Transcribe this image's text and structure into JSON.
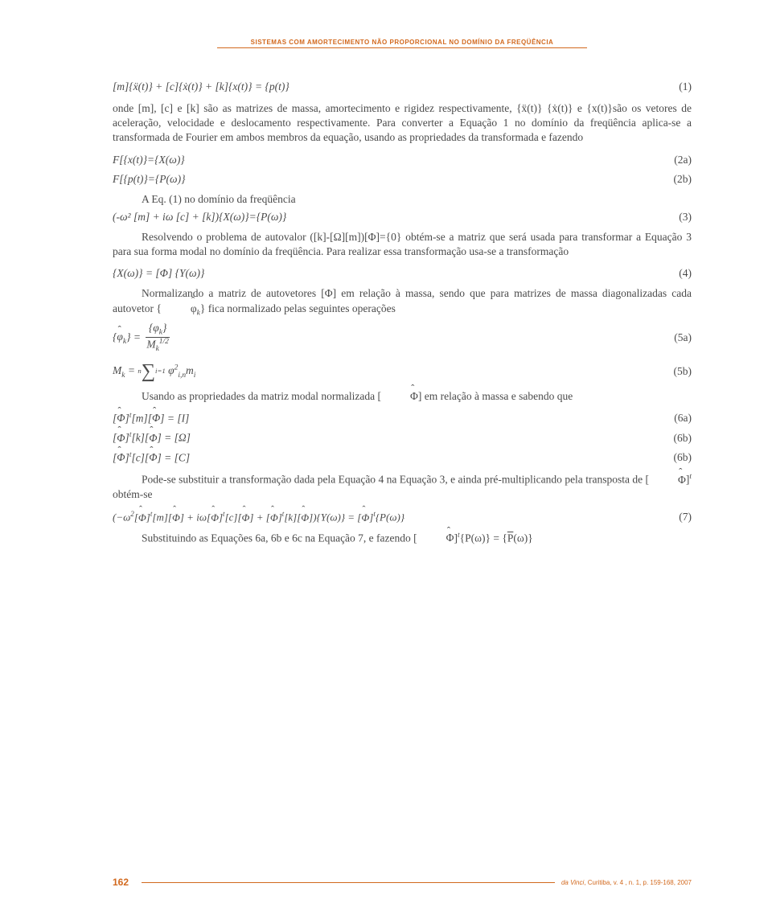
{
  "header": {
    "title": "SISTEMAS COM AMORTECIMENTO NÃO PROPORCIONAL NO DOMÍNIO DA FREQÜÊNCIA",
    "accent_color": "#d2691e"
  },
  "equations": {
    "eq1": {
      "expr": "[m]{ẍ(t)} + [c]{ẋ(t)} + [k]{x(t)} = {p(t)}",
      "num": "(1)"
    },
    "eq2a": {
      "expr": "F[{x(t)}={X(ω)}",
      "num": "(2a)"
    },
    "eq2b": {
      "expr": "F[{p(t)}={P(ω)}",
      "num": "(2b)"
    },
    "eq3": {
      "expr": "(-ω² [m] + iω [c] + [k]){X(ω)}={P(ω)}",
      "num": "(3)"
    },
    "eq4": {
      "expr": "{X(ω)} = [Φ] {Y(ω)}",
      "num": "(4)"
    },
    "eq5a": {
      "num": "(5a)"
    },
    "eq5b": {
      "num": "(5b)"
    },
    "eq6a": {
      "num": "(6a)"
    },
    "eq6b": {
      "num": "(6b)"
    },
    "eq6c": {
      "num": "(6b)"
    },
    "eq7": {
      "num": "(7)"
    }
  },
  "paragraphs": {
    "p1": "onde [m], [c] e [k] são as matrizes de massa, amortecimento e rigidez respectivamente, {ẍ(t)} {ẋ(t)} e {x(t)}são os vetores de aceleração, velocidade e deslocamento respectivamente. Para converter a Equação 1 no domínio da freqüência aplica-se a transformada de Fourier em ambos membros da equação, usando as propriedades da transformada e fazendo",
    "p2": "A Eq. (1) no domínio da freqüência",
    "p3": "Resolvendo o problema de autovalor ([k]-[Ω][m])[Φ]={0} obtém-se a matriz  que será usada para transformar a Equação 3 para sua forma modal no domínio da freqüência. Para realizar essa transformação usa-se a transformação",
    "p4_a": "Normalizando a matriz de autovetores [Φ] em relação à massa, sendo que para matrizes de massa diagonalizadas cada autovetor ",
    "p4_b": " fica normalizado pelas seguintes operações",
    "p5_a": "Usando as propriedades da matriz modal normalizada ",
    "p5_b": " em relação à massa e sabendo que",
    "p6_a": "Pode-se substituir a transformação dada pela Equação 4 na Equação 3, e ainda pré-multiplicando pela transposta de ",
    "p6_b": " obtém-se",
    "p7_a": "Substituindo as Equações 6a, 6b e 6c na Equação 7, e fazendo "
  },
  "footer": {
    "page": "162",
    "journal_it": "da Vinci",
    "journal_rest": ", Curitiba, v. 4 , n. 1, p. 159-168, 2007"
  }
}
